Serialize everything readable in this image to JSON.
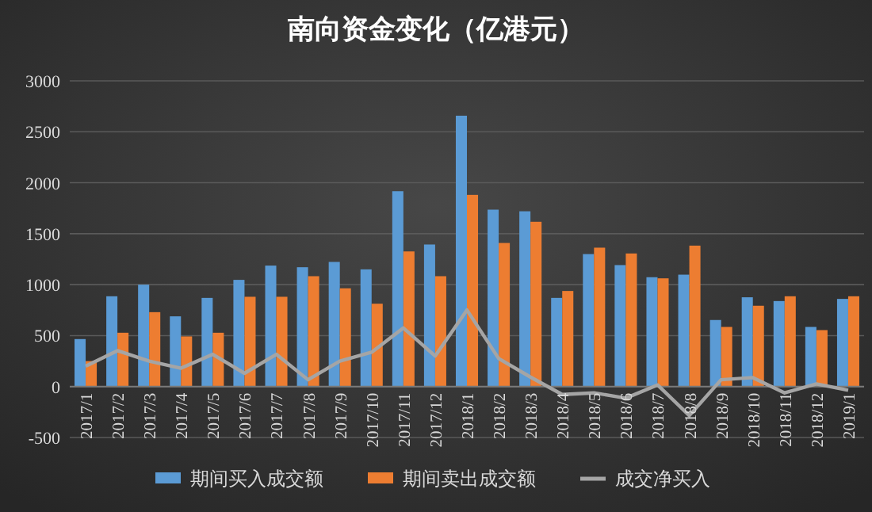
{
  "chart_data": {
    "type": "bar",
    "title": "南向资金变化（亿港元）",
    "categories": [
      "2017/1",
      "2017/2",
      "2017/3",
      "2017/4",
      "2017/5",
      "2017/6",
      "2017/7",
      "2017/8",
      "2017/9",
      "2017/10",
      "2017/11",
      "2017/12",
      "2018/1",
      "2018/2",
      "2018/3",
      "2018/4",
      "2018/5",
      "2018/6",
      "2018/7",
      "2018/8",
      "2018/9",
      "2018/10",
      "2018/11",
      "2018/12",
      "2019/1"
    ],
    "series": [
      {
        "name": "期间买入成交额",
        "color": "#5b9bd5",
        "values": [
          466,
          886,
          1000,
          689,
          870,
          1047,
          1187,
          1171,
          1223,
          1150,
          1917,
          1394,
          2658,
          1736,
          1720,
          870,
          1300,
          1192,
          1073,
          1098,
          653,
          876,
          839,
          585,
          860
        ]
      },
      {
        "name": "期间卖出成交额",
        "color": "#ed7d31",
        "values": [
          250,
          528,
          730,
          492,
          528,
          881,
          881,
          1083,
          964,
          813,
          1326,
          1083,
          1881,
          1409,
          1617,
          938,
          1363,
          1306,
          1062,
          1383,
          585,
          793,
          886,
          554,
          886
        ]
      },
      {
        "name": "成交净买入",
        "type": "line",
        "color": "#a5a5a5",
        "values": [
          200,
          352,
          250,
          180,
          316,
          130,
          316,
          67,
          250,
          337,
          575,
          300,
          751,
          275,
          93,
          -78,
          -62,
          -114,
          16,
          -285,
          67,
          88,
          -62,
          26,
          -36
        ]
      }
    ],
    "ylim": [
      -500,
      3000
    ],
    "yticks": [
      -500,
      0,
      500,
      1000,
      1500,
      2000,
      2500,
      3000
    ],
    "grid": "y",
    "legend": "bottom",
    "marker": "none",
    "line_style": "solid"
  }
}
